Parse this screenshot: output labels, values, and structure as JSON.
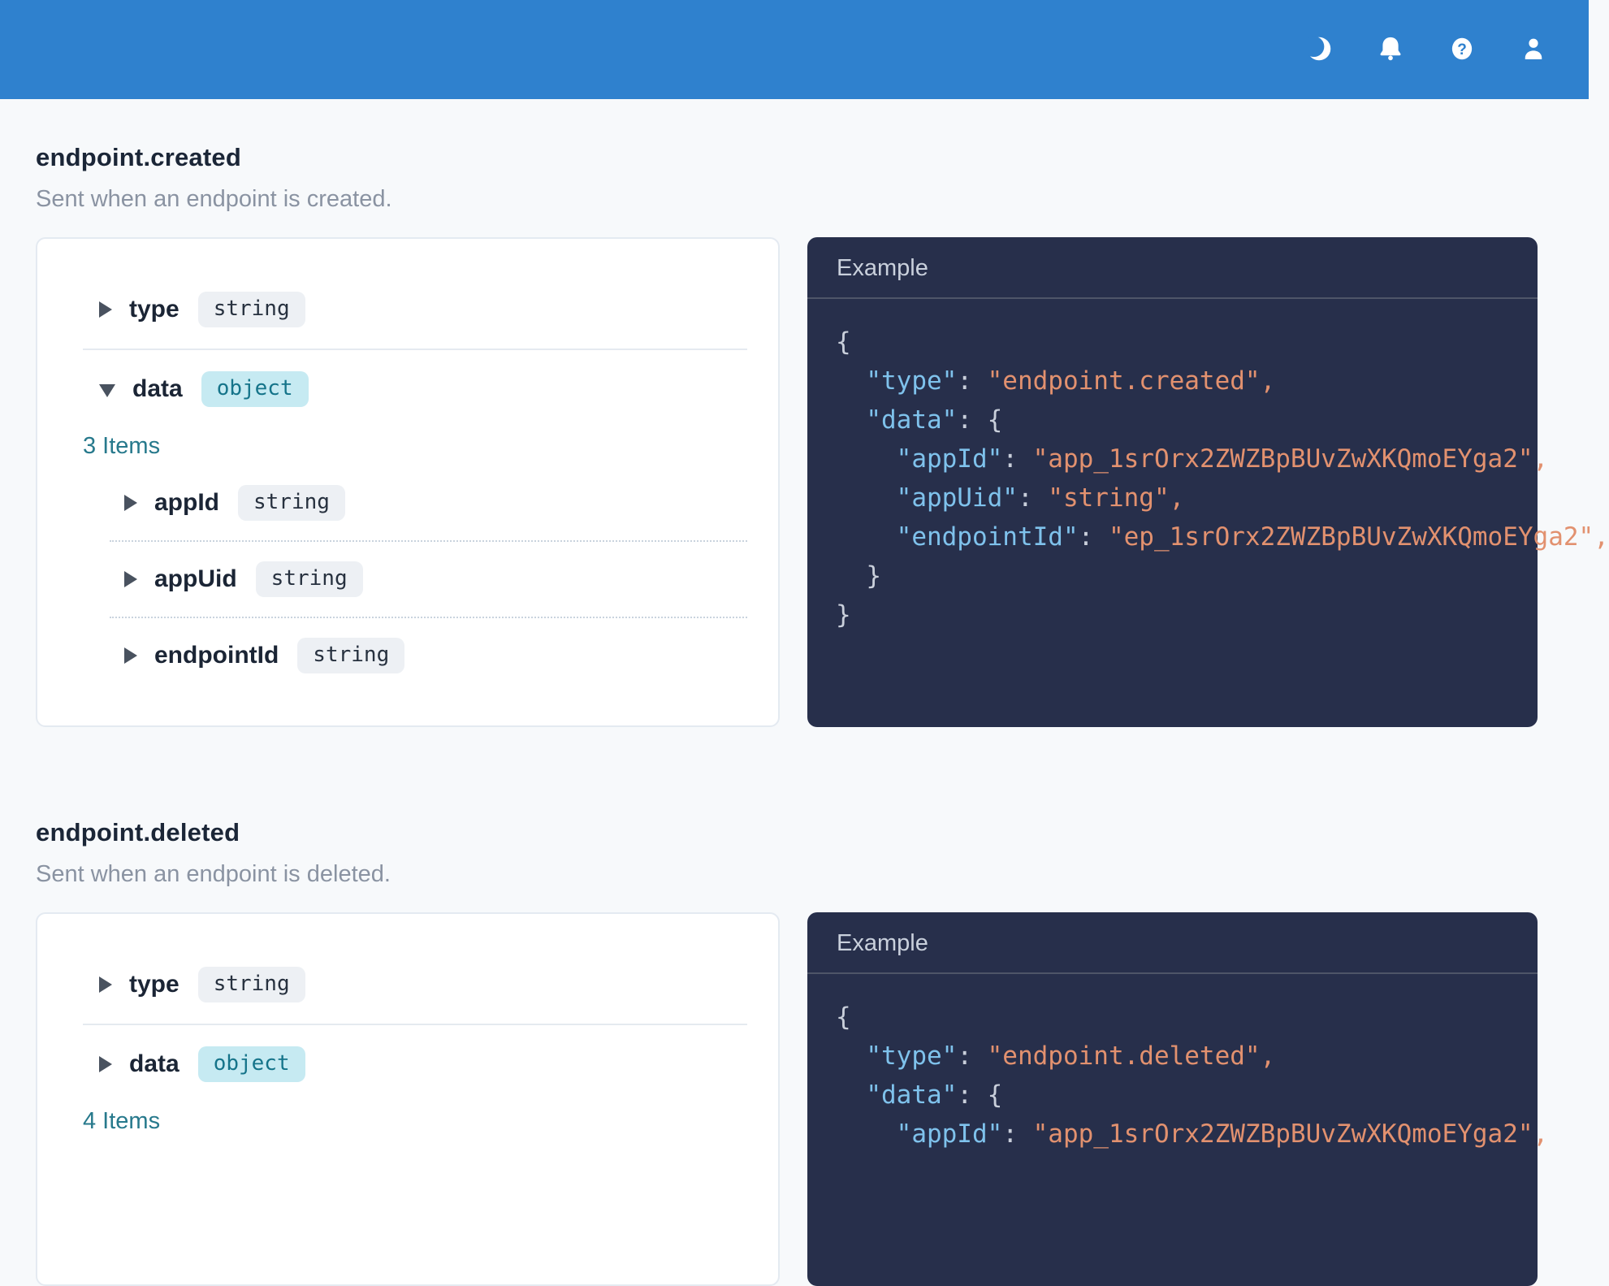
{
  "colors": {
    "header_blue": "#2F81CE",
    "page_background": "#F7F9FB",
    "panel_dark": "#272F4B",
    "code_key_blue": "#7FC2EC",
    "code_string_salmon": "#E2916F",
    "code_punctuation": "#C9CFDB",
    "badge_teal_bg": "#C6EAF2",
    "badge_teal_text": "#15748A",
    "badge_gray_bg": "#EDF0F4",
    "items_teal": "#27798C"
  },
  "header": {
    "icons": [
      {
        "name": "moon-icon"
      },
      {
        "name": "bell-icon"
      },
      {
        "name": "question-icon"
      },
      {
        "name": "user-icon"
      }
    ]
  },
  "sections": [
    {
      "title": "endpoint.created",
      "description": "Sent when an endpoint is created.",
      "schema": {
        "rows": [
          {
            "kind": "field",
            "label": "type",
            "badge": "string",
            "badge_variant": "gray",
            "arrow": "collapsed",
            "indent": 0,
            "divider_after": "solid"
          },
          {
            "kind": "field",
            "label": "data",
            "badge": "object",
            "badge_variant": "teal",
            "arrow": "expanded",
            "indent": 0,
            "divider_after": null
          },
          {
            "kind": "items",
            "label": "3 Items"
          },
          {
            "kind": "field",
            "label": "appId",
            "badge": "string",
            "badge_variant": "gray",
            "arrow": "collapsed",
            "indent": 1,
            "divider_after": "dotted"
          },
          {
            "kind": "field",
            "label": "appUid",
            "badge": "string",
            "badge_variant": "gray",
            "arrow": "collapsed",
            "indent": 1,
            "divider_after": "dotted"
          },
          {
            "kind": "field",
            "label": "endpointId",
            "badge": "string",
            "badge_variant": "gray",
            "arrow": "collapsed",
            "indent": 1,
            "divider_after": null
          }
        ]
      },
      "example": {
        "label": "Example",
        "code_lines": [
          [
            {
              "c": "pun",
              "t": "{"
            }
          ],
          [
            {
              "c": "pun",
              "t": "  "
            },
            {
              "c": "key",
              "t": "\"type\""
            },
            {
              "c": "pun",
              "t": ": "
            },
            {
              "c": "str",
              "t": "\"endpoint.created\","
            }
          ],
          [
            {
              "c": "pun",
              "t": "  "
            },
            {
              "c": "key",
              "t": "\"data\""
            },
            {
              "c": "pun",
              "t": ": {"
            }
          ],
          [
            {
              "c": "pun",
              "t": "    "
            },
            {
              "c": "key",
              "t": "\"appId\""
            },
            {
              "c": "pun",
              "t": ": "
            },
            {
              "c": "str",
              "t": "\"app_1srOrx2ZWZBpBUvZwXKQmoEYga2\","
            }
          ],
          [
            {
              "c": "pun",
              "t": "    "
            },
            {
              "c": "key",
              "t": "\"appUid\""
            },
            {
              "c": "pun",
              "t": ": "
            },
            {
              "c": "str",
              "t": "\"string\","
            }
          ],
          [
            {
              "c": "pun",
              "t": "    "
            },
            {
              "c": "key",
              "t": "\"endpointId\""
            },
            {
              "c": "pun",
              "t": ": "
            },
            {
              "c": "str",
              "t": "\"ep_1srOrx2ZWZBpBUvZwXKQmoEYga2\","
            }
          ],
          [
            {
              "c": "pun",
              "t": "  }"
            }
          ],
          [
            {
              "c": "pun",
              "t": "}"
            }
          ]
        ]
      }
    },
    {
      "title": "endpoint.deleted",
      "description": "Sent when an endpoint is deleted.",
      "schema": {
        "rows": [
          {
            "kind": "field",
            "label": "type",
            "badge": "string",
            "badge_variant": "gray",
            "arrow": "collapsed",
            "indent": 0,
            "divider_after": "solid"
          },
          {
            "kind": "field",
            "label": "data",
            "badge": "object",
            "badge_variant": "teal",
            "arrow": "collapsed",
            "indent": 0,
            "divider_after": null
          },
          {
            "kind": "items",
            "label": "4 Items"
          }
        ]
      },
      "example": {
        "label": "Example",
        "code_lines": [
          [
            {
              "c": "pun",
              "t": "{"
            }
          ],
          [
            {
              "c": "pun",
              "t": "  "
            },
            {
              "c": "key",
              "t": "\"type\""
            },
            {
              "c": "pun",
              "t": ": "
            },
            {
              "c": "str",
              "t": "\"endpoint.deleted\","
            }
          ],
          [
            {
              "c": "pun",
              "t": "  "
            },
            {
              "c": "key",
              "t": "\"data\""
            },
            {
              "c": "pun",
              "t": ": {"
            }
          ],
          [
            {
              "c": "pun",
              "t": "    "
            },
            {
              "c": "key",
              "t": "\"appId\""
            },
            {
              "c": "pun",
              "t": ": "
            },
            {
              "c": "str",
              "t": "\"app_1srOrx2ZWZBpBUvZwXKQmoEYga2\","
            }
          ]
        ]
      }
    }
  ]
}
